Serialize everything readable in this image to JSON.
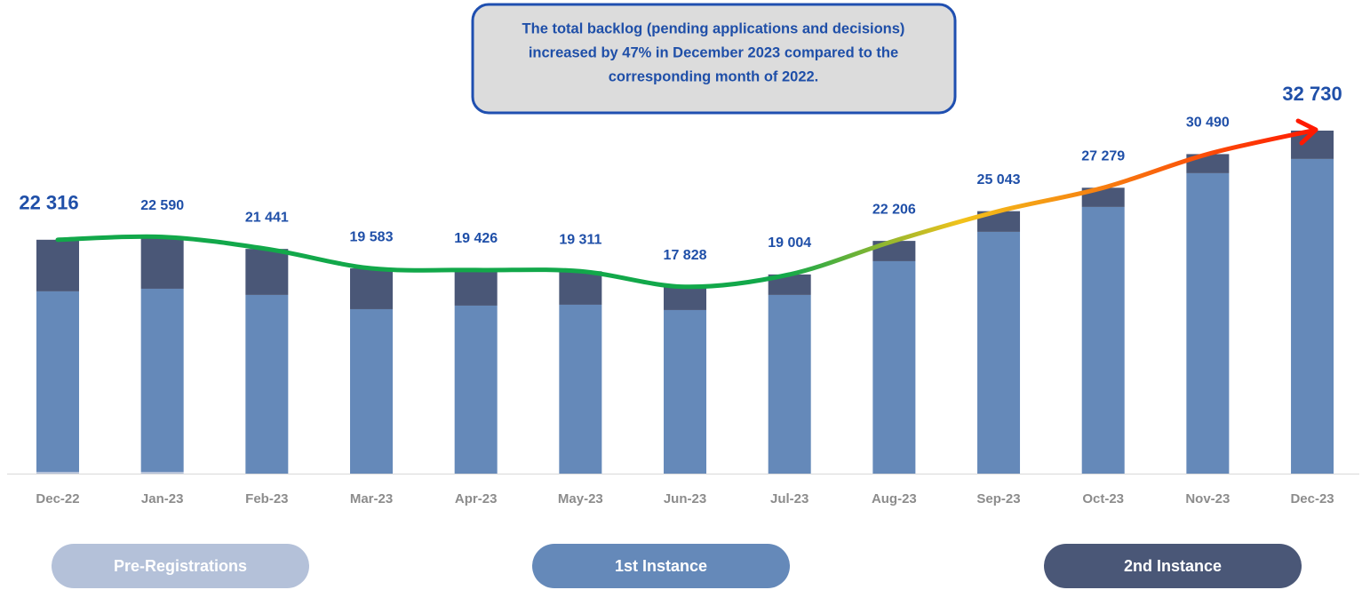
{
  "chart_data": {
    "type": "stacked_bar",
    "annotation": [
      "The total backlog (pending applications and decisions)",
      "increased by 47% in December 2023 compared to the",
      "corresponding month of 2022."
    ],
    "categories": [
      "Dec-22",
      "Jan-23",
      "Feb-23",
      "Mar-23",
      "Apr-23",
      "May-23",
      "Jun-23",
      "Jul-23",
      "Aug-23",
      "Sep-23",
      "Oct-23",
      "Nov-23",
      "Dec-23"
    ],
    "series": [
      {
        "name": "Pre-Registrations",
        "color": "#b4c1d9",
        "values": [
          170,
          170,
          0,
          0,
          0,
          0,
          0,
          0,
          0,
          0,
          0,
          0,
          0
        ]
      },
      {
        "name": "1st Instance",
        "color": "#6589b9",
        "values": [
          17220,
          17470,
          17050,
          15690,
          16030,
          16115,
          15606,
          17050,
          20270,
          23070,
          25445,
          28668,
          30025
        ]
      },
      {
        "name": "2nd Instance",
        "color": "#4a5777",
        "values": [
          4926,
          4950,
          4391,
          3893,
          3396,
          3196,
          2222,
          1954,
          1936,
          1973,
          1834,
          1822,
          2705
        ]
      }
    ],
    "totals": [
      22316,
      22590,
      21441,
      19583,
      19426,
      19311,
      17828,
      19004,
      22206,
      25043,
      27279,
      30490,
      32730
    ],
    "total_labels": [
      "22 316",
      "22 590",
      "21 441",
      "19 583",
      "19 426",
      "19 311",
      "17 828",
      "19 004",
      "22 206",
      "25 043",
      "27 279",
      "30 490",
      "32 730"
    ],
    "trend_colors": [
      "#12a84a",
      "#12a84a",
      "#f2c21b",
      "#ff1a00"
    ],
    "ylim": [
      0,
      32730
    ]
  }
}
